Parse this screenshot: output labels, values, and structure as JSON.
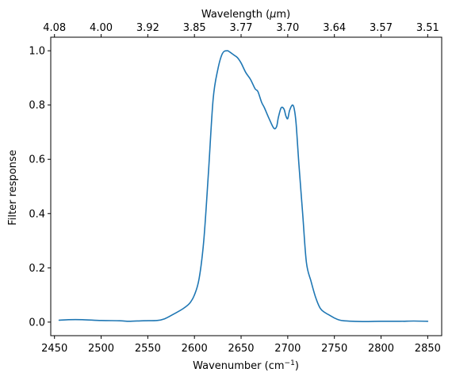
{
  "chart_data": {
    "type": "line",
    "xlabel": "Wavenumber (cm",
    "xlabel_sup": "−1",
    "xlabel_end": ")",
    "ylabel": "Filter response",
    "top_xlabel": "Wavelength (",
    "top_xlabel_unit_symbol": "μ",
    "top_xlabel_end": "m)",
    "xlim": [
      2446,
      2865
    ],
    "ylim": [
      -0.05,
      1.05
    ],
    "grid": false,
    "legend": "none",
    "x_ticks": [
      2450,
      2500,
      2550,
      2600,
      2650,
      2700,
      2750,
      2800,
      2850
    ],
    "x_tick_labels": [
      "2450",
      "2500",
      "2550",
      "2600",
      "2650",
      "2700",
      "2750",
      "2800",
      "2850"
    ],
    "y_ticks": [
      0.0,
      0.2,
      0.4,
      0.6,
      0.8,
      1.0
    ],
    "y_tick_labels": [
      "0.0",
      "0.2",
      "0.4",
      "0.6",
      "0.8",
      "1.0"
    ],
    "top_ticks_at_wavenumber": [
      2450,
      2500,
      2550,
      2600,
      2650,
      2700,
      2750,
      2800,
      2850
    ],
    "top_tick_labels": [
      "4.08",
      "4.00",
      "3.92",
      "3.85",
      "3.77",
      "3.70",
      "3.64",
      "3.57",
      "3.51"
    ],
    "series": [
      {
        "color": "#1f77b4",
        "x": [
          2455,
          2465,
          2480,
          2500,
          2520,
          2530,
          2545,
          2560,
          2568,
          2578,
          2588,
          2595,
          2600,
          2605,
          2610,
          2615,
          2620,
          2625,
          2630,
          2635,
          2638,
          2642,
          2646,
          2650,
          2655,
          2660,
          2665,
          2668,
          2672,
          2675,
          2680,
          2685,
          2688,
          2690,
          2693,
          2696,
          2698,
          2700,
          2702,
          2705,
          2707,
          2709,
          2712,
          2716,
          2720,
          2725,
          2730,
          2735,
          2740,
          2745,
          2750,
          2755,
          2760,
          2770,
          2780,
          2800,
          2820,
          2835,
          2850
        ],
        "y": [
          0.007,
          0.009,
          0.009,
          0.006,
          0.005,
          0.003,
          0.005,
          0.006,
          0.012,
          0.03,
          0.05,
          0.07,
          0.1,
          0.16,
          0.3,
          0.55,
          0.82,
          0.93,
          0.99,
          1.0,
          0.995,
          0.985,
          0.975,
          0.955,
          0.92,
          0.895,
          0.86,
          0.85,
          0.81,
          0.79,
          0.75,
          0.715,
          0.72,
          0.755,
          0.79,
          0.785,
          0.76,
          0.75,
          0.78,
          0.8,
          0.785,
          0.73,
          0.58,
          0.4,
          0.22,
          0.15,
          0.09,
          0.05,
          0.035,
          0.025,
          0.015,
          0.008,
          0.005,
          0.003,
          0.002,
          0.003,
          0.003,
          0.004,
          0.003
        ]
      }
    ]
  }
}
